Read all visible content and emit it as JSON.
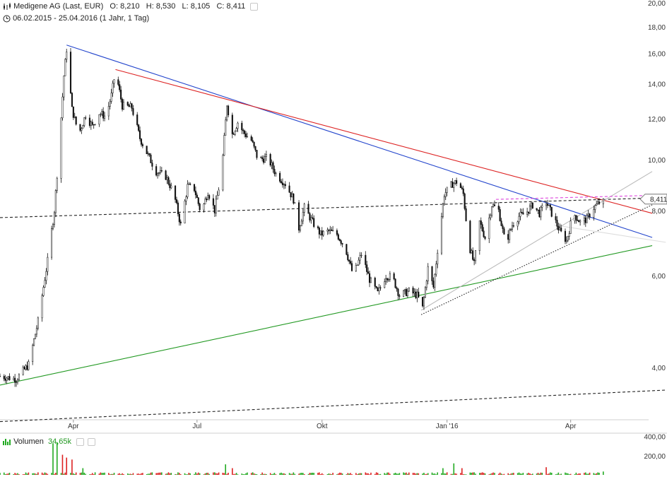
{
  "header": {
    "title": "Medigene AG (Last, EUR)",
    "open_label": "O: 8,210",
    "high_label": "H: 8,530",
    "low_label": "L: 8,105",
    "close_label": "C: 8,411",
    "period_label": "06.02.2015 - 25.04.2016 (1 Jahr, 1 Tag)"
  },
  "volume_panel": {
    "label": "Volumen",
    "value": "34,65k"
  },
  "price_badge": "8,411",
  "colors": {
    "blue_trend": "#2244cc",
    "red_trend": "#dd2222",
    "green_trend": "#229922",
    "magenta_line": "#dd44dd",
    "vol_up": "#22aa22",
    "vol_down": "#dd2222"
  },
  "chart_data": [
    {
      "type": "candlestick",
      "title": "Medigene AG (Last, EUR)",
      "y_scale": "log",
      "ylim": [
        3.3,
        20.0
      ],
      "y_ticks": [
        "20,00",
        "18,00",
        "16,00",
        "14,00",
        "12,00",
        "10,00",
        "8,00",
        "6,00",
        "4,00"
      ],
      "x_ticks": [
        "Apr",
        "Jul",
        "Okt",
        "Jan '16",
        "Apr"
      ],
      "x_range": [
        "2015-02-06",
        "2016-05-31"
      ],
      "last": 8.411,
      "path_points": [
        [
          "2015-02-06",
          3.85
        ],
        [
          "2015-02-18",
          3.8
        ],
        [
          "2015-02-27",
          4.05
        ],
        [
          "2015-03-06",
          4.9
        ],
        [
          "2015-03-13",
          6.4
        ],
        [
          "2015-03-18",
          8.0
        ],
        [
          "2015-03-22",
          11.0
        ],
        [
          "2015-03-25",
          14.5
        ],
        [
          "2015-03-27",
          16.3
        ],
        [
          "2015-03-31",
          12.5
        ],
        [
          "2015-04-05",
          11.2
        ],
        [
          "2015-04-10",
          12.2
        ],
        [
          "2015-04-15",
          11.6
        ],
        [
          "2015-04-20",
          12.3
        ],
        [
          "2015-04-25",
          12.1
        ],
        [
          "2015-04-29",
          13.3
        ],
        [
          "2015-05-02",
          14.8
        ],
        [
          "2015-05-07",
          12.7
        ],
        [
          "2015-05-14",
          12.6
        ],
        [
          "2015-05-20",
          11.0
        ],
        [
          "2015-05-26",
          10.2
        ],
        [
          "2015-06-01",
          9.5
        ],
        [
          "2015-06-08",
          9.3
        ],
        [
          "2015-06-14",
          8.6
        ],
        [
          "2015-06-19",
          7.5
        ],
        [
          "2015-06-24",
          8.9
        ],
        [
          "2015-06-29",
          8.8
        ],
        [
          "2015-07-04",
          7.9
        ],
        [
          "2015-07-09",
          8.7
        ],
        [
          "2015-07-14",
          8.0
        ],
        [
          "2015-07-19",
          9.4
        ],
        [
          "2015-07-23",
          12.8
        ],
        [
          "2015-07-27",
          11.2
        ],
        [
          "2015-07-31",
          11.8
        ],
        [
          "2015-08-04",
          11.3
        ],
        [
          "2015-08-10",
          10.9
        ],
        [
          "2015-08-15",
          10.0
        ],
        [
          "2015-08-22",
          10.1
        ],
        [
          "2015-08-28",
          9.4
        ],
        [
          "2015-09-04",
          9.0
        ],
        [
          "2015-09-10",
          8.4
        ],
        [
          "2015-09-14",
          7.4
        ],
        [
          "2015-09-18",
          8.1
        ],
        [
          "2015-09-24",
          7.6
        ],
        [
          "2015-09-30",
          7.2
        ],
        [
          "2015-10-06",
          7.3
        ],
        [
          "2015-10-12",
          7.2
        ],
        [
          "2015-10-18",
          6.8
        ],
        [
          "2015-10-24",
          6.0
        ],
        [
          "2015-10-30",
          6.6
        ],
        [
          "2015-11-05",
          5.9
        ],
        [
          "2015-11-11",
          5.55
        ],
        [
          "2015-11-17",
          6.0
        ],
        [
          "2015-11-22",
          5.95
        ],
        [
          "2015-11-27",
          5.5
        ],
        [
          "2015-12-04",
          5.6
        ],
        [
          "2015-12-10",
          5.5
        ],
        [
          "2015-12-14",
          5.2
        ],
        [
          "2015-12-18",
          6.2
        ],
        [
          "2015-12-22",
          5.7
        ],
        [
          "2015-12-26",
          7.1
        ],
        [
          "2015-12-30",
          8.6
        ],
        [
          "2016-01-05",
          9.0
        ],
        [
          "2016-01-09",
          9.1
        ],
        [
          "2016-01-13",
          8.6
        ],
        [
          "2016-01-17",
          6.9
        ],
        [
          "2016-01-21",
          6.3
        ],
        [
          "2016-01-25",
          7.6
        ],
        [
          "2016-01-29",
          7.1
        ],
        [
          "2016-02-03",
          8.2
        ],
        [
          "2016-02-08",
          8.0
        ],
        [
          "2016-02-13",
          6.9
        ],
        [
          "2016-02-18",
          7.5
        ],
        [
          "2016-02-23",
          7.8
        ],
        [
          "2016-02-28",
          7.9
        ],
        [
          "2016-03-04",
          8.2
        ],
        [
          "2016-03-09",
          7.9
        ],
        [
          "2016-03-14",
          8.3
        ],
        [
          "2016-03-19",
          7.8
        ],
        [
          "2016-03-24",
          7.3
        ],
        [
          "2016-03-29",
          7.0
        ],
        [
          "2016-04-03",
          7.9
        ],
        [
          "2016-04-08",
          7.6
        ],
        [
          "2016-04-13",
          7.7
        ],
        [
          "2016-04-18",
          8.1
        ],
        [
          "2016-04-25",
          8.411
        ]
      ],
      "trend_lines": [
        {
          "color": "blue",
          "style": "solid",
          "from": [
            "2015-03-27",
            16.6
          ],
          "to": [
            "2016-05-31",
            7.1
          ]
        },
        {
          "color": "red",
          "style": "solid",
          "from": [
            "2015-05-02",
            14.9
          ],
          "to": [
            "2016-05-31",
            7.9
          ]
        },
        {
          "color": "green",
          "style": "solid",
          "from": [
            "2015-02-06",
            3.7
          ],
          "to": [
            "2016-05-31",
            6.85
          ]
        },
        {
          "color": "black",
          "style": "dashed",
          "from": [
            "2015-02-06",
            7.75
          ],
          "to": [
            "2016-05-31",
            8.45
          ]
        },
        {
          "color": "black",
          "style": "dashed",
          "from": [
            "2015-02-06",
            3.15
          ],
          "to": [
            "2016-06-10",
            3.62
          ]
        },
        {
          "color": "black",
          "style": "dotted",
          "from": [
            "2015-12-13",
            5.05
          ],
          "to": [
            "2016-05-31",
            8.2
          ]
        },
        {
          "color": "gray",
          "style": "solid",
          "from": [
            "2015-12-13",
            5.15
          ],
          "to": [
            "2016-05-31",
            9.5
          ]
        },
        {
          "color": "lightgray",
          "style": "solid",
          "from": [
            "2016-03-20",
            7.5
          ],
          "to": [
            "2016-06-10",
            6.95
          ]
        },
        {
          "color": "magenta",
          "style": "dashed",
          "from": [
            "2016-02-06",
            8.4
          ],
          "to": [
            "2016-05-31",
            8.55
          ]
        }
      ]
    },
    {
      "type": "bar",
      "title": "Volumen",
      "value_label": "34,65k",
      "ylim": [
        0,
        420
      ],
      "y_ticks": [
        "400,00",
        "200,00"
      ],
      "spikes": [
        {
          "x": "2015-03-17",
          "value": 330,
          "dir": "up"
        },
        {
          "x": "2015-03-20",
          "value": 340,
          "dir": "up"
        },
        {
          "x": "2015-03-24",
          "value": 210,
          "dir": "down"
        },
        {
          "x": "2015-03-27",
          "value": 180,
          "dir": "down"
        },
        {
          "x": "2015-03-31",
          "value": 160,
          "dir": "down"
        },
        {
          "x": "2015-04-08",
          "value": 70,
          "dir": "up"
        },
        {
          "x": "2015-05-02",
          "value": 90,
          "dir": "up"
        },
        {
          "x": "2015-07-22",
          "value": 110,
          "dir": "up"
        },
        {
          "x": "2015-07-27",
          "value": 70,
          "dir": "down"
        },
        {
          "x": "2015-12-29",
          "value": 70,
          "dir": "up"
        },
        {
          "x": "2016-01-06",
          "value": 120,
          "dir": "up"
        },
        {
          "x": "2016-01-12",
          "value": 70,
          "dir": "down"
        },
        {
          "x": "2016-03-14",
          "value": 80,
          "dir": "down"
        },
        {
          "x": "2016-04-25",
          "value": 35,
          "dir": "up"
        }
      ]
    }
  ]
}
